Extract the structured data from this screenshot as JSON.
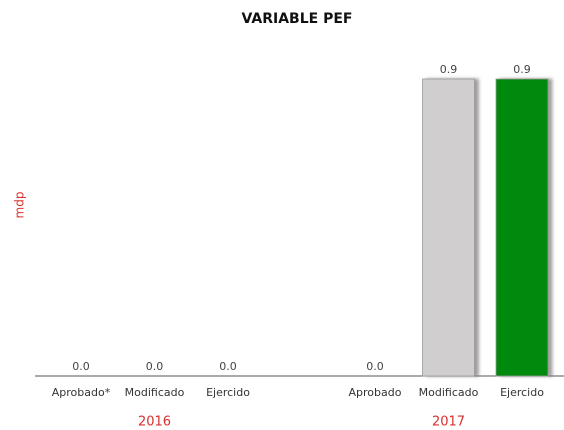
{
  "chart_data": {
    "type": "bar",
    "title": "VARIABLE PEF",
    "y_label": "mdp",
    "categories": [
      "Aprobado*",
      "Modificado",
      "Ejercido",
      "Aprobado",
      "Modificado",
      "Ejercido"
    ],
    "groups": [
      "2016",
      "2017"
    ],
    "values": [
      0,
      0,
      0,
      0,
      0.9,
      0.9
    ],
    "value_labels": [
      "0.0",
      "0.0",
      "0.0",
      "0.0",
      "0.9",
      "0.9"
    ],
    "colors": [
      "#d0cece",
      "#d0cece",
      "#008a0a",
      "#d0cece",
      "#d0cece",
      "#008a0a"
    ],
    "ylim": [
      0,
      0.9
    ]
  }
}
